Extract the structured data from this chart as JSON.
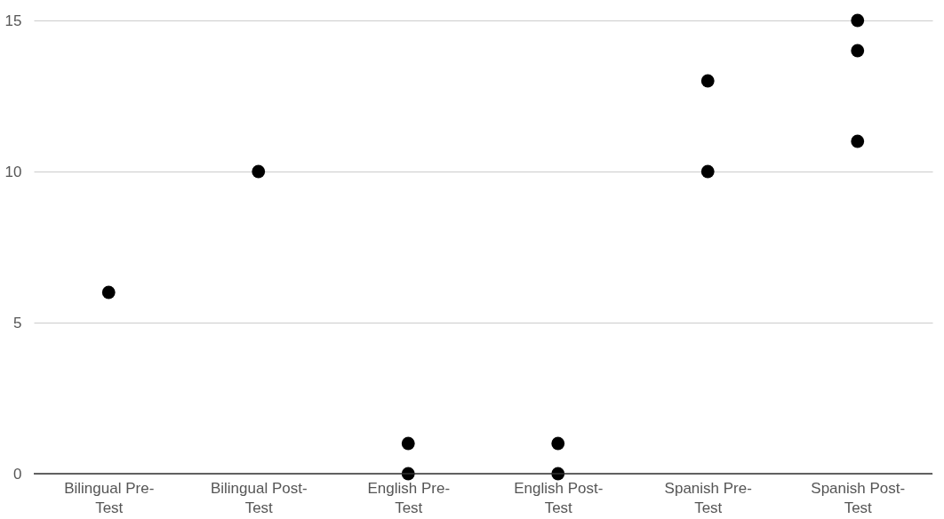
{
  "chart_data": {
    "type": "scatter",
    "categories": [
      "Bilingual Pre-Test",
      "Bilingual Post-Test",
      "English Pre-Test",
      "English Post-Test",
      "Spanish Pre-Test",
      "Spanish Post-Test"
    ],
    "series": [
      {
        "color": "#000000",
        "x": [
          "Bilingual Pre-Test",
          "Bilingual Post-Test",
          "English Pre-Test",
          "English Pre-Test",
          "English Post-Test",
          "English Post-Test",
          "Spanish Pre-Test",
          "Spanish Pre-Test",
          "Spanish Post-Test",
          "Spanish Post-Test",
          "Spanish Post-Test"
        ],
        "values": [
          6,
          10,
          1,
          0,
          1,
          0,
          13,
          10,
          15,
          14,
          11
        ]
      }
    ],
    "ylim": [
      0,
      15
    ],
    "yticks": [
      0,
      5,
      10,
      15
    ],
    "grid": "y",
    "legend": false,
    "marker": "circle"
  }
}
